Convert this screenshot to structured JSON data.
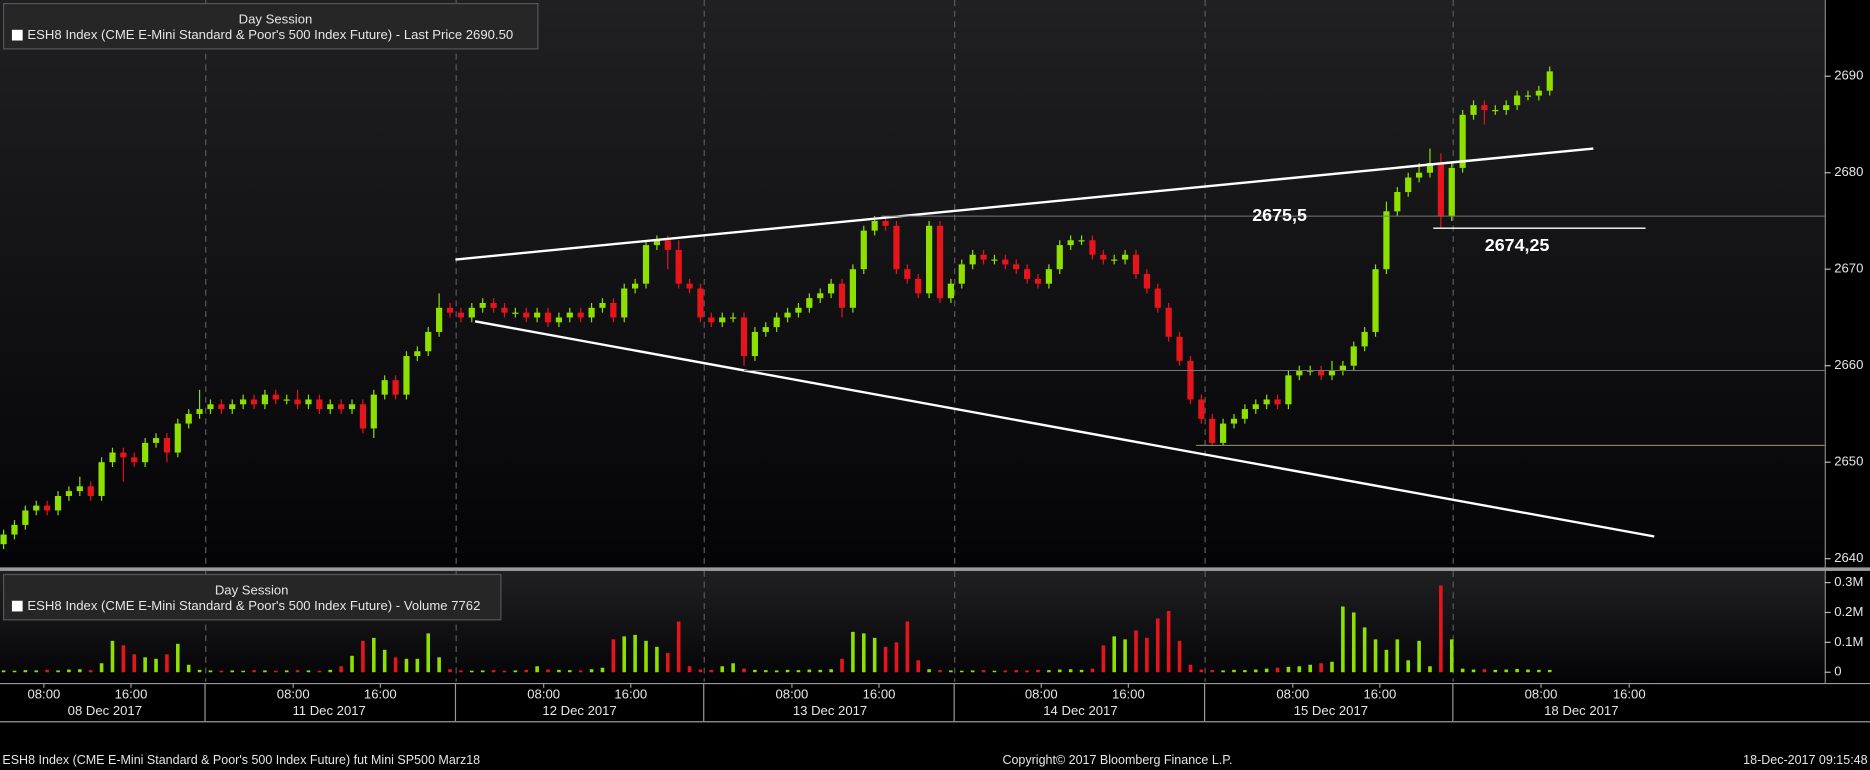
{
  "chart_data": [
    {
      "type": "candlestick",
      "legend_title": "Day Session",
      "title": "ESH8 Index (CME E-Mini Standard & Poor's 500 Index Future) - Last Price 2690.50",
      "up_color": "#8ee000",
      "down_color": "#e8141c",
      "xlim": [
        -0.33,
        167.25
      ],
      "ylim": [
        2639.1,
        2697.9
      ],
      "yticks": [
        2640,
        2650,
        2660,
        2670,
        2680,
        2690
      ],
      "day_lines": [
        18.5,
        41.5,
        64.3,
        87.3,
        110.3,
        133.1
      ],
      "open": [
        2641.5,
        2642.5,
        2643.5,
        2645,
        2645.5,
        2645,
        2646.5,
        2647,
        2647.5,
        2646.5,
        2650,
        2651,
        2650.5,
        2650,
        2652,
        2652.5,
        2651,
        2654,
        2655,
        2655.5,
        2656,
        2655.5,
        2656,
        2656.5,
        2656,
        2657,
        2656.5,
        2656.5,
        2656,
        2656.5,
        2655.5,
        2656,
        2655.5,
        2656,
        2653.5,
        2657,
        2658.5,
        2657,
        2661,
        2661.5,
        2663.5,
        2666,
        2665.5,
        2665,
        2666,
        2666.5,
        2666,
        2665.5,
        2665.5,
        2665,
        2665.5,
        2664.5,
        2665,
        2665.5,
        2665,
        2666,
        2666.5,
        2665,
        2668,
        2668.5,
        2672.5,
        2673,
        2672,
        2668.5,
        2668,
        2665,
        2664.5,
        2665,
        2665,
        2661,
        2663.5,
        2664,
        2665,
        2665.5,
        2666,
        2667,
        2667.5,
        2668.5,
        2666,
        2670,
        2674,
        2675,
        2674.5,
        2670,
        2669,
        2667.5,
        2674.5,
        2667,
        2668.5,
        2670.5,
        2671.5,
        2671,
        2671,
        2670.5,
        2670,
        2669,
        2668.5,
        2670,
        2672.5,
        2673,
        2673,
        2671.5,
        2671,
        2671,
        2671.5,
        2669.5,
        2668,
        2666,
        2663,
        2660.5,
        2656.5,
        2654.5,
        2652,
        2654,
        2654.5,
        2655.5,
        2656,
        2656.5,
        2656,
        2659,
        2659.5,
        2659.5,
        2659,
        2659.5,
        2660,
        2662,
        2663.5,
        2670,
        2676,
        2678,
        2679.5,
        2680,
        2681,
        2675.5,
        2680.5,
        2686,
        2687,
        2686.5,
        2686.5,
        2687,
        2688,
        2688,
        2688.5
      ],
      "high": [
        2643,
        2644,
        2645.5,
        2646,
        2646,
        2647,
        2647.5,
        2648.5,
        2648,
        2650.5,
        2651.5,
        2651.5,
        2651,
        2652.5,
        2653,
        2653,
        2654.5,
        2655.5,
        2657.5,
        2656.5,
        2656.5,
        2656.5,
        2657,
        2657,
        2657.5,
        2657.5,
        2657,
        2657.5,
        2657,
        2657,
        2656.5,
        2656.5,
        2656.5,
        2656.5,
        2657.5,
        2659,
        2659,
        2661.5,
        2662,
        2664,
        2667.5,
        2666.5,
        2666,
        2666.5,
        2667,
        2667,
        2666.5,
        2666,
        2666,
        2666,
        2666,
        2665.5,
        2666,
        2666,
        2666.5,
        2667,
        2667,
        2668.5,
        2669,
        2673,
        2673.5,
        2673.5,
        2673,
        2669,
        2668.5,
        2665.5,
        2665.5,
        2665.5,
        2665.5,
        2664,
        2664.5,
        2665.5,
        2666,
        2666.5,
        2667.5,
        2668,
        2669,
        2669,
        2670.5,
        2674.5,
        2675.5,
        2675.5,
        2675,
        2670.5,
        2669.5,
        2675,
        2675,
        2669,
        2671,
        2672,
        2672,
        2671.5,
        2671.5,
        2671,
        2670.5,
        2669.5,
        2670.5,
        2673,
        2673.5,
        2673.5,
        2673.5,
        2672,
        2671.5,
        2672,
        2672,
        2670,
        2668.5,
        2666.5,
        2663.5,
        2661,
        2657,
        2655,
        2654.5,
        2655,
        2656,
        2656.5,
        2657,
        2657,
        2659.5,
        2660,
        2660,
        2660,
        2660.5,
        2660.5,
        2662.5,
        2664,
        2670.5,
        2677,
        2678.5,
        2680,
        2681,
        2682.5,
        2682,
        2681,
        2686.5,
        2687.5,
        2687.5,
        2687,
        2687.5,
        2688.5,
        2688.5,
        2689,
        2691
      ],
      "low": [
        2641,
        2642,
        2643,
        2644.5,
        2644.5,
        2644.5,
        2646,
        2646.5,
        2646,
        2646,
        2649.5,
        2648,
        2649.5,
        2649.5,
        2651.5,
        2650,
        2650.5,
        2653.5,
        2654.5,
        2655,
        2655,
        2655,
        2655.5,
        2655.5,
        2655.5,
        2656,
        2656,
        2655.5,
        2655.5,
        2655,
        2655,
        2655,
        2655,
        2653,
        2652.5,
        2656.5,
        2656.5,
        2656.5,
        2660.5,
        2661,
        2663,
        2665,
        2664.5,
        2664.5,
        2665.5,
        2665.5,
        2665,
        2665,
        2664.5,
        2664.5,
        2664,
        2664,
        2664.5,
        2664.5,
        2664.5,
        2665.5,
        2664.5,
        2664.5,
        2667.5,
        2668,
        2672,
        2670,
        2668,
        2667.5,
        2664.5,
        2664,
        2664,
        2664.5,
        2660,
        2660.5,
        2663,
        2663.5,
        2664.5,
        2665,
        2665.5,
        2666.5,
        2667,
        2665,
        2665.5,
        2669.5,
        2673.5,
        2674,
        2669.5,
        2668.5,
        2667,
        2667,
        2666.5,
        2666.5,
        2668,
        2670,
        2670.5,
        2670.5,
        2670,
        2669.5,
        2668.5,
        2668,
        2668,
        2669.5,
        2672,
        2672.5,
        2671,
        2670.5,
        2670.5,
        2670.5,
        2669,
        2667.5,
        2665.5,
        2662.5,
        2660,
        2656,
        2654,
        2651.75,
        2651.75,
        2653.5,
        2654,
        2655,
        2655.5,
        2655.5,
        2655.5,
        2658.5,
        2659,
        2658.5,
        2658.5,
        2659,
        2659.5,
        2661.5,
        2663,
        2669.5,
        2675.5,
        2677.5,
        2679,
        2679.5,
        2674.25,
        2675,
        2680,
        2685.5,
        2685,
        2686,
        2686,
        2686.5,
        2687.5,
        2687.5,
        2688
      ],
      "close": [
        2642.5,
        2643.5,
        2645,
        2645.5,
        2645,
        2646.5,
        2647,
        2647.5,
        2646.5,
        2650,
        2651,
        2650.5,
        2650,
        2652,
        2652.5,
        2651,
        2654,
        2655,
        2655.5,
        2656,
        2655.5,
        2656,
        2656.5,
        2656,
        2657,
        2656.5,
        2656.5,
        2656,
        2656.5,
        2655.5,
        2656,
        2655.5,
        2656,
        2653.5,
        2657,
        2658.5,
        2657,
        2661,
        2661.5,
        2663.5,
        2666,
        2665.5,
        2665,
        2666,
        2666.5,
        2666,
        2665.5,
        2665.5,
        2665,
        2665.5,
        2664.5,
        2665,
        2665.5,
        2665,
        2666,
        2666.5,
        2665,
        2668,
        2668.5,
        2672.5,
        2673,
        2672,
        2668.5,
        2668,
        2665,
        2664.5,
        2665,
        2665,
        2661,
        2663.5,
        2664,
        2665,
        2665.5,
        2666,
        2667,
        2667.5,
        2668.5,
        2666,
        2670,
        2674,
        2675,
        2674.5,
        2670,
        2669,
        2667.5,
        2674.5,
        2667,
        2668.5,
        2670.5,
        2671.5,
        2671,
        2671,
        2670.5,
        2670,
        2669,
        2668.5,
        2670,
        2672.5,
        2673,
        2673,
        2671.5,
        2671,
        2671,
        2671.5,
        2669.5,
        2668,
        2666,
        2663,
        2660.5,
        2656.5,
        2654.5,
        2652,
        2654,
        2654.5,
        2655.5,
        2656,
        2656.5,
        2656,
        2659,
        2659.5,
        2659.5,
        2659,
        2659.5,
        2660,
        2662,
        2663.5,
        2670,
        2676,
        2678,
        2679.5,
        2680,
        2681,
        2675.5,
        2680.5,
        2686,
        2687,
        2686.5,
        2686.5,
        2687,
        2688,
        2688,
        2688.5,
        2690.5
      ],
      "trend_lines": [
        {
          "start": [
            41.5,
            2671
          ],
          "end": [
            146,
            2682.5
          ]
        },
        {
          "start": [
            43.3,
            2664.6
          ],
          "end": [
            151.6,
            2642.3
          ]
        }
      ],
      "levels": [
        {
          "value": 2675.5,
          "label": "2675,5",
          "from": 80.6,
          "color": "#777777"
        },
        {
          "value": 2674.25,
          "label": "2674,25",
          "from": 131.3,
          "to": 150.8,
          "color": "#ffffff"
        },
        {
          "value": 2659.5,
          "from": 68,
          "color": "#777777"
        },
        {
          "value": 2651.75,
          "from": 109.5,
          "color": "#b8a878"
        }
      ]
    },
    {
      "type": "volume",
      "legend_title": "Day Session",
      "title": "ESH8 Index (CME E-Mini Standard & Poor's 500 Index Future) - Volume 7762",
      "xlim": [
        -0.33,
        167.25
      ],
      "ylim": [
        -32000,
        339000
      ],
      "yticks": [
        0,
        {
          "value": 100000,
          "label": "0.1M"
        },
        {
          "value": 200000,
          "label": "0.2M"
        },
        {
          "value": 300000,
          "label": "0.3M"
        }
      ],
      "xticks": [
        {
          "value": 3.7,
          "label": "08:00"
        },
        {
          "value": 11.7,
          "label": "16:00"
        },
        {
          "value": 26.6,
          "label": "08:00"
        },
        {
          "value": 34.6,
          "label": "16:00"
        },
        {
          "value": 49.6,
          "label": "08:00"
        },
        {
          "value": 57.6,
          "label": "16:00"
        },
        {
          "value": 72.4,
          "label": "08:00"
        },
        {
          "value": 80.4,
          "label": "16:00"
        },
        {
          "value": 95.3,
          "label": "08:00"
        },
        {
          "value": 103.3,
          "label": "16:00"
        },
        {
          "value": 118.4,
          "label": "08:00"
        },
        {
          "value": 126.4,
          "label": "16:00"
        },
        {
          "value": 141.2,
          "label": "08:00"
        },
        {
          "value": 149.3,
          "label": "16:00"
        }
      ],
      "date_labels": [
        {
          "value": 9.3,
          "label": "08 Dec 2017"
        },
        {
          "value": 29.9,
          "label": "11 Dec 2017"
        },
        {
          "value": 52.9,
          "label": "12 Dec 2017"
        },
        {
          "value": 75.9,
          "label": "13 Dec 2017"
        },
        {
          "value": 98.9,
          "label": "14 Dec 2017"
        },
        {
          "value": 121.9,
          "label": "15 Dec 2017"
        },
        {
          "value": 144.9,
          "label": "18 Dec 2017"
        }
      ],
      "day_lines": [
        18.5,
        41.5,
        64.3,
        87.3,
        110.3,
        133.1
      ],
      "values": [
        6000,
        5000,
        7000,
        6000,
        8000,
        6000,
        9000,
        10000,
        7000,
        30000,
        105000,
        90000,
        60000,
        50000,
        45000,
        60000,
        95000,
        25000,
        8000,
        6000,
        5000,
        6000,
        5000,
        7000,
        6000,
        5000,
        6000,
        7000,
        6000,
        5000,
        8000,
        20000,
        55000,
        105000,
        115000,
        75000,
        50000,
        45000,
        45000,
        130000,
        50000,
        10000,
        6000,
        5000,
        6000,
        7000,
        5000,
        6000,
        8000,
        20000,
        9000,
        8000,
        7000,
        6000,
        10000,
        15000,
        110000,
        120000,
        125000,
        105000,
        85000,
        65000,
        170000,
        20000,
        9000,
        8000,
        20000,
        30000,
        12000,
        8000,
        7000,
        6000,
        8000,
        7000,
        9000,
        8000,
        10000,
        45000,
        135000,
        130000,
        115000,
        85000,
        100000,
        170000,
        40000,
        10000,
        7000,
        6000,
        5000,
        6000,
        7000,
        5000,
        6000,
        7000,
        6000,
        8000,
        7000,
        9000,
        10000,
        8000,
        12000,
        90000,
        120000,
        110000,
        140000,
        115000,
        180000,
        205000,
        105000,
        25000,
        9000,
        7000,
        6000,
        8000,
        7000,
        9000,
        12000,
        15000,
        18000,
        20000,
        25000,
        30000,
        35000,
        220000,
        200000,
        150000,
        110000,
        75000,
        110000,
        40000,
        105000,
        20000,
        290000,
        110000,
        12000,
        9000,
        10000,
        8000,
        9000,
        11000,
        9000,
        8000,
        7762
      ]
    }
  ],
  "footer": {
    "left": "ESH8 Index (CME E-Mini Standard & Poor's 500 Index Future) fut Mini SP500 Marz18",
    "center": "Copyright© 2017 Bloomberg Finance L.P.",
    "right": "18-Dec-2017 09:15:48"
  }
}
